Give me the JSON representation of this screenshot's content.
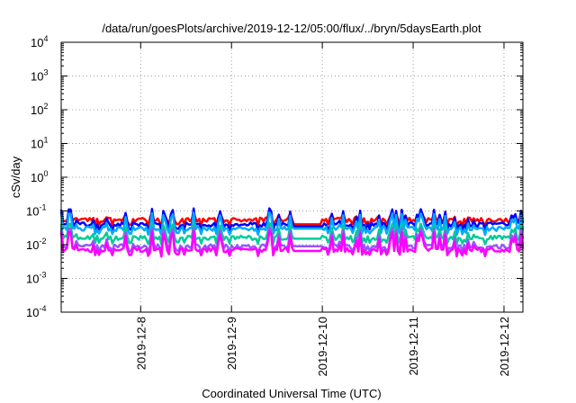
{
  "chart_data": {
    "type": "line",
    "title": "/data/run/goesPlots/archive/2019-12-12/05:00/flux/../bryn/5daysEarth.plot",
    "xlabel": "Coordinated Universal Time (UTC)",
    "ylabel": "cSv/day",
    "y_scale": "log",
    "ylim": [
      0.0001,
      10000
    ],
    "y_ticks": [
      {
        "base": "10",
        "exp": "-4",
        "value": 0.0001
      },
      {
        "base": "10",
        "exp": "-3",
        "value": 0.001
      },
      {
        "base": "10",
        "exp": "-2",
        "value": 0.01
      },
      {
        "base": "10",
        "exp": "-1",
        "value": 0.1
      },
      {
        "base": "10",
        "exp": "0",
        "value": 1
      },
      {
        "base": "10",
        "exp": "1",
        "value": 10
      },
      {
        "base": "10",
        "exp": "2",
        "value": 100
      },
      {
        "base": "10",
        "exp": "3",
        "value": 1000
      },
      {
        "base": "10",
        "exp": "4",
        "value": 10000
      }
    ],
    "xlim": [
      "2019-12-07T03:00",
      "2019-12-12T05:00"
    ],
    "x_ticks": [
      "2019-12-8",
      "2019-12-9",
      "2019-12-10",
      "2019-12-11",
      "2019-12-12"
    ],
    "x_tick_dates": [
      "2019-12-08",
      "2019-12-09",
      "2019-12-10",
      "2019-12-11",
      "2019-12-12"
    ],
    "grid": true,
    "legend": "none",
    "gap": [
      "2019-12-09T16:00",
      "2019-12-10T00:00"
    ],
    "series": [
      {
        "color": "#ff0000",
        "base": 0.055,
        "spike_amp": 0.35,
        "gap_value": 0.04
      },
      {
        "color": "#0000ff",
        "base": 0.04,
        "spike_amp": 0.9,
        "gap_value": 0.035
      },
      {
        "color": "#00aaff",
        "base": 0.03,
        "spike_amp": 0.9,
        "gap_value": 0.03
      },
      {
        "color": "#00cc99",
        "base": 0.016,
        "spike_amp": 0.8,
        "gap_value": 0.015
      },
      {
        "color": "#9955ff",
        "base": 0.009,
        "spike_amp": 1.2,
        "gap_value": 0.009
      },
      {
        "color": "#ff00ff",
        "base": 0.007,
        "spike_amp": 1.2,
        "gap_value": 0.0065
      }
    ]
  }
}
